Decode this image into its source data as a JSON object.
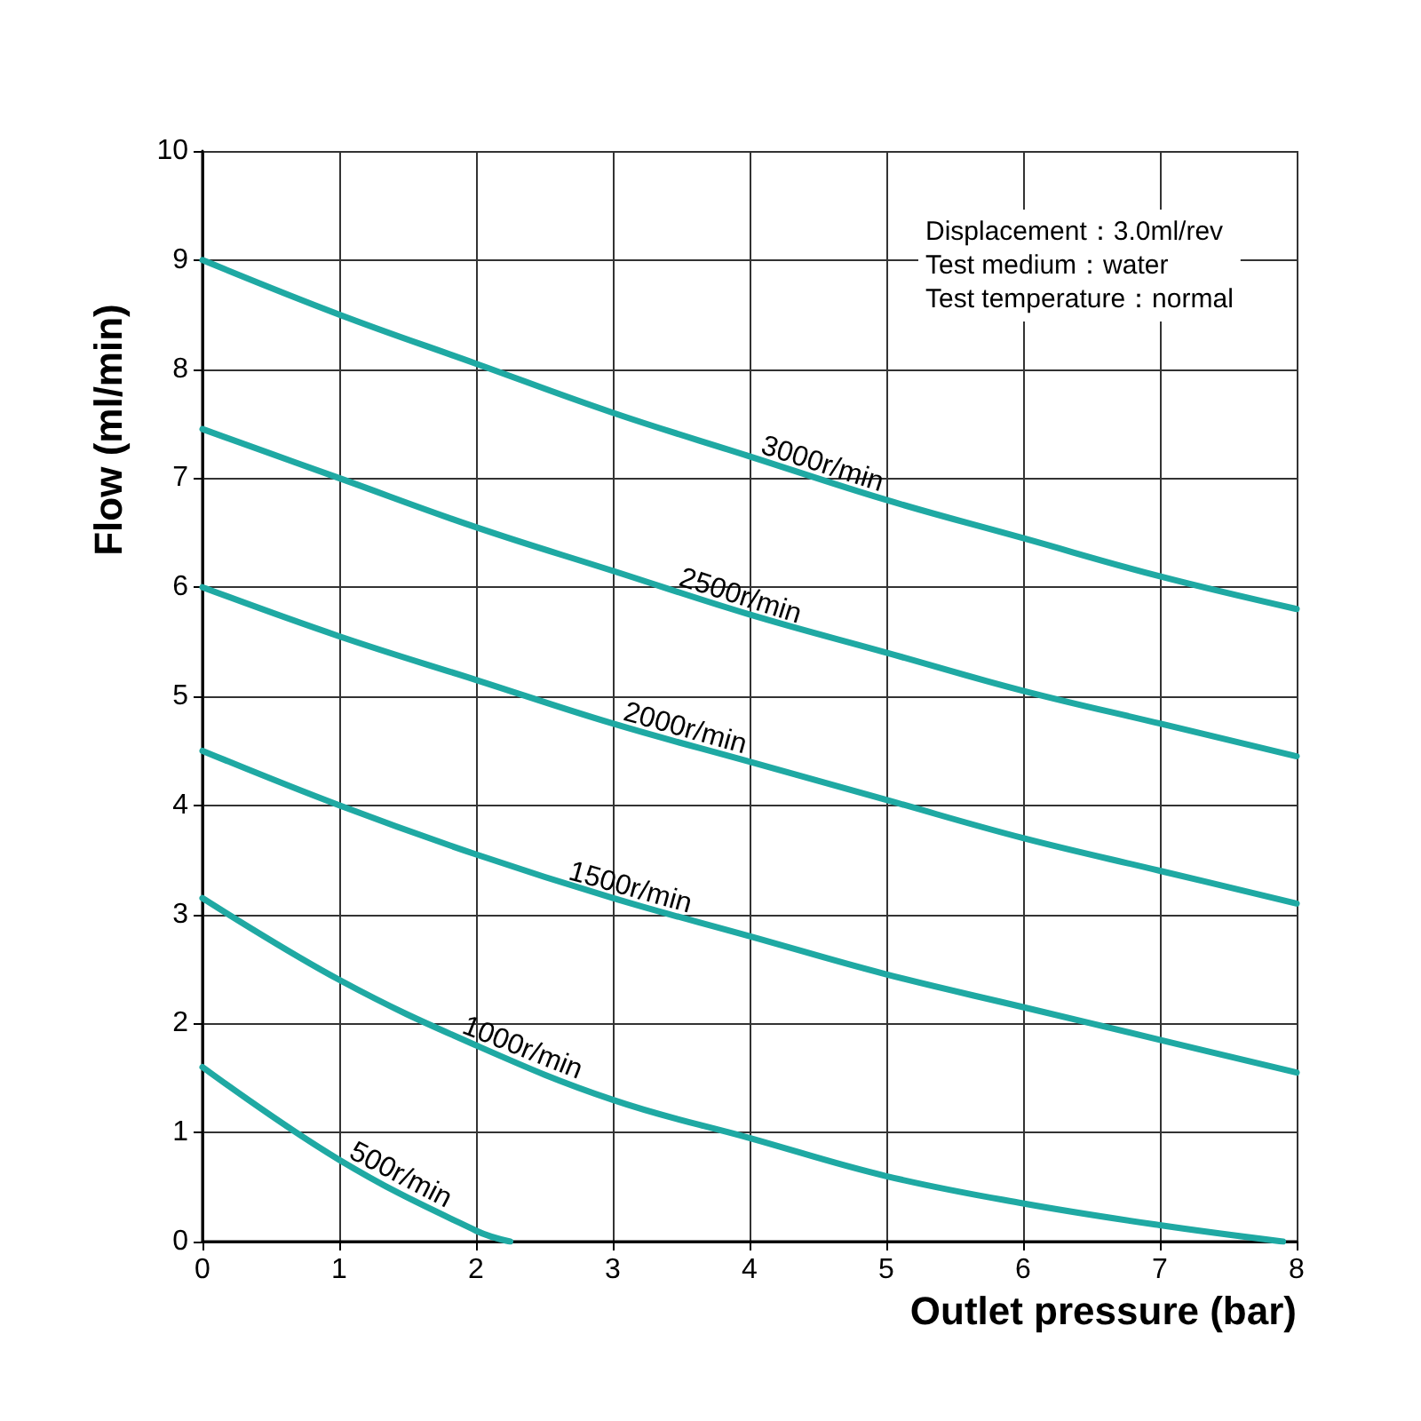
{
  "chart_data": {
    "type": "line",
    "xlabel": "Outlet pressure (bar)",
    "ylabel": "Flow (ml/min)",
    "x": [
      0,
      1,
      2,
      3,
      4,
      5,
      6,
      7,
      8
    ],
    "series": [
      {
        "name": "3000r/min",
        "color": "#1fa9a3",
        "values": [
          9.0,
          8.5,
          8.05,
          7.6,
          7.2,
          6.8,
          6.45,
          6.1,
          5.8
        ]
      },
      {
        "name": "2500r/min",
        "color": "#1fa9a3",
        "values": [
          7.45,
          7.0,
          6.55,
          6.15,
          5.75,
          5.4,
          5.05,
          4.75,
          4.45
        ]
      },
      {
        "name": "2000r/min",
        "color": "#1fa9a3",
        "values": [
          6.0,
          5.55,
          5.15,
          4.75,
          4.4,
          4.05,
          3.7,
          3.4,
          3.1
        ]
      },
      {
        "name": "1500r/min",
        "color": "#1fa9a3",
        "values": [
          4.5,
          4.0,
          3.55,
          3.15,
          2.8,
          2.45,
          2.15,
          1.85,
          1.55
        ]
      },
      {
        "name": "1000r/min",
        "color": "#1fa9a3",
        "x": [
          0,
          1,
          2,
          3,
          4,
          5,
          6,
          7,
          7.9
        ],
        "values": [
          3.15,
          2.4,
          1.8,
          1.3,
          0.95,
          0.6,
          0.35,
          0.15,
          0.0
        ]
      },
      {
        "name": "500r/min",
        "color": "#1fa9a3",
        "x": [
          0,
          1,
          2,
          2.25
        ],
        "values": [
          1.6,
          0.75,
          0.1,
          0.0
        ]
      }
    ],
    "xlim": [
      0,
      8
    ],
    "xticks": [
      0,
      1,
      2,
      3,
      4,
      5,
      6,
      7,
      8
    ],
    "ylim": [
      0,
      10
    ],
    "yticks": [
      0,
      1,
      2,
      3,
      4,
      5,
      6,
      7,
      8,
      9,
      10
    ],
    "annotations": [
      "Displacement：3.0ml/rev",
      "Test medium：water",
      "Test temperature：normal"
    ],
    "grid": true,
    "legend": false,
    "marker": "none",
    "line_style": "solid"
  }
}
